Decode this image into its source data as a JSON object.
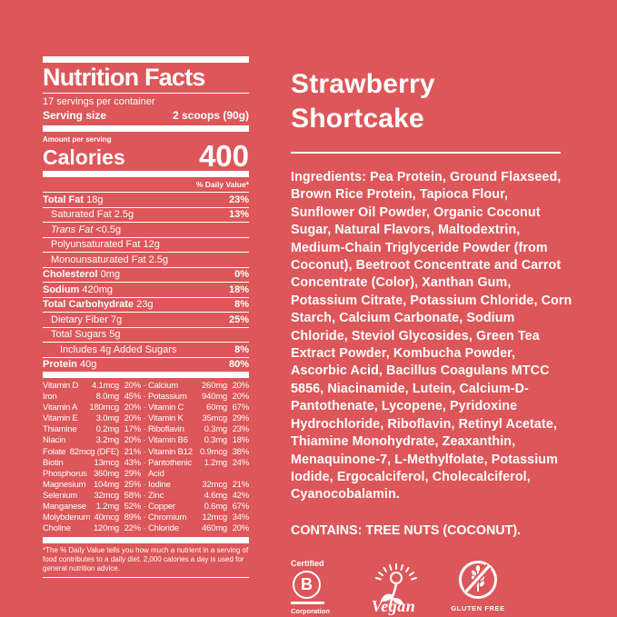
{
  "colors": {
    "background": "#DD5659",
    "foreground": "#FFFFFF"
  },
  "nutrition_facts": {
    "title": "Nutrition Facts",
    "servings_per_container": "17 servings per container",
    "serving_size_label": "Serving size",
    "serving_size_value": "2 scoops (90g)",
    "amount_per_serving": "Amount per serving",
    "calories_label": "Calories",
    "calories_value": "400",
    "daily_value_header": "% Daily Value*",
    "nutrients": [
      {
        "name": "Total Fat",
        "amount": "18g",
        "dv": "23%",
        "bold": true,
        "indent": 0
      },
      {
        "name": "Saturated Fat",
        "amount": "2.5g",
        "dv": "13%",
        "bold": false,
        "indent": 1
      },
      {
        "name": "Trans Fat",
        "amount": "<0.5g",
        "dv": "",
        "bold": false,
        "indent": 1,
        "italic": true
      },
      {
        "name": "Polyunsaturated Fat",
        "amount": "12g",
        "dv": "",
        "bold": false,
        "indent": 1
      },
      {
        "name": "Monounsaturated Fat",
        "amount": "2.5g",
        "dv": "",
        "bold": false,
        "indent": 1
      },
      {
        "name": "Cholesterol",
        "amount": "0mg",
        "dv": "0%",
        "bold": true,
        "indent": 0
      },
      {
        "name": "Sodium",
        "amount": "420mg",
        "dv": "18%",
        "bold": true,
        "indent": 0
      },
      {
        "name": "Total Carbohydrate",
        "amount": "23g",
        "dv": "8%",
        "bold": true,
        "indent": 0
      },
      {
        "name": "Dietary Fiber",
        "amount": "7g",
        "dv": "25%",
        "bold": false,
        "indent": 1
      },
      {
        "name": "Total Sugars",
        "amount": "5g",
        "dv": "",
        "bold": false,
        "indent": 1
      },
      {
        "name": "Includes 4g Added Sugars",
        "amount": "",
        "dv": "8%",
        "bold": false,
        "indent": 2
      },
      {
        "name": "Protein",
        "amount": "40g",
        "dv": "80%",
        "bold": true,
        "indent": 0
      }
    ],
    "micronutrients": [
      {
        "left": [
          "Vitamin D",
          "4.1mcg",
          "20%"
        ],
        "sep": "·",
        "right": [
          "Calcium",
          "260mg",
          "20%"
        ]
      },
      {
        "left": [
          "Iron",
          "8.0mg",
          "45%"
        ],
        "sep": "·",
        "right": [
          "Potassium",
          "940mg",
          "20%"
        ]
      },
      {
        "left": [
          "Vitamin A",
          "180mcg",
          "20%"
        ],
        "sep": "·",
        "right": [
          "Vitamin C",
          "60mg",
          "67%"
        ]
      },
      {
        "left": [
          "Vitamin E",
          "3.0mg",
          "20%"
        ],
        "sep": "·",
        "right": [
          "Vitamin K",
          "35mcg",
          "29%"
        ]
      },
      {
        "left": [
          "Thiamine",
          "0.2mg",
          "17%"
        ],
        "sep": "·",
        "right": [
          "Riboflavin",
          "0.3mg",
          "23%"
        ]
      },
      {
        "left": [
          "Niacin",
          "3.2mg",
          "20%"
        ],
        "sep": "·",
        "right": [
          "Vitamin B6",
          "0.3mg",
          "18%"
        ]
      },
      {
        "left": [
          "Folate",
          "82mcg (DFE)",
          "21%"
        ],
        "sep": "·",
        "right": [
          "Vitamin B12",
          "0.9mcg",
          "38%"
        ]
      },
      {
        "left": [
          "Biotin",
          "13mcg",
          "43%"
        ],
        "sep": "·",
        "right": [
          "Pantothenic",
          "1.2mg",
          "24%"
        ]
      },
      {
        "left": [
          "Phosphorus",
          "360mg",
          "29%"
        ],
        "sep": "",
        "right": [
          "Acid",
          "",
          ""
        ]
      },
      {
        "left": [
          "Magnesium",
          "104mg",
          "25%"
        ],
        "sep": "·",
        "right": [
          "Iodine",
          "32mcg",
          "21%"
        ]
      },
      {
        "left": [
          "Selenium",
          "32mcg",
          "58%"
        ],
        "sep": "·",
        "right": [
          "Zinc",
          "4.6mg",
          "42%"
        ]
      },
      {
        "left": [
          "Manganese",
          "1.2mg",
          "52%"
        ],
        "sep": "·",
        "right": [
          "Copper",
          "0.6mg",
          "67%"
        ]
      },
      {
        "left": [
          "Molybdenum",
          "40mcg",
          "89%"
        ],
        "sep": "·",
        "right": [
          "Chromium",
          "12mcg",
          "34%"
        ]
      },
      {
        "left": [
          "Choline",
          "120mg",
          "22%"
        ],
        "sep": "·",
        "right": [
          "Chloride",
          "460mg",
          "20%"
        ]
      }
    ],
    "footnote": "*The % Daily Value tells you how much a nutrient in a serving of food contributes to a daily diet. 2,000 calories a day is used for general nutrition advice."
  },
  "product": {
    "flavor_name": "Strawberry Shortcake",
    "ingredients_label": "Ingredients:",
    "ingredients_text": " Pea Protein, Ground Flaxseed, Brown Rice Protein, Tapioca Flour, Sunflower Oil Powder, Organic Coconut Sugar, Natural Flavors, Maltodextrin, Medium-Chain Triglyceride Powder (from Coconut), Beetroot Concentrate and Carrot Concentrate (Color), Xanthan Gum, Potassium Citrate, Potassium Chloride, Corn Starch, Calcium Carbonate, Sodium Chloride, Steviol Glycosides, Green Tea Extract Powder, Kombucha Powder, Ascorbic Acid, Bacillus Coagulans MTCC 5856, Niacinamide, Lutein, Calcium-D-Pantothenate, Lycopene, Pyridoxine Hydrochloride, Riboflavin, Retinyl Acetate, Thiamine Monohydrate, Zeaxanthin, Menaquinone-7, L-Methylfolate, Potassium Iodide, Ergocalciferol, Cholecalciferol, Cyanocobalamin.",
    "contains": "CONTAINS: TREE NUTS (COCONUT)."
  },
  "badges": {
    "bcorp": {
      "certified": "Certified",
      "letter": "B",
      "corporation": "Corporation"
    },
    "vegan": {
      "label": "Vegan"
    },
    "gluten_free": {
      "label": "GLUTEN FREE"
    }
  }
}
